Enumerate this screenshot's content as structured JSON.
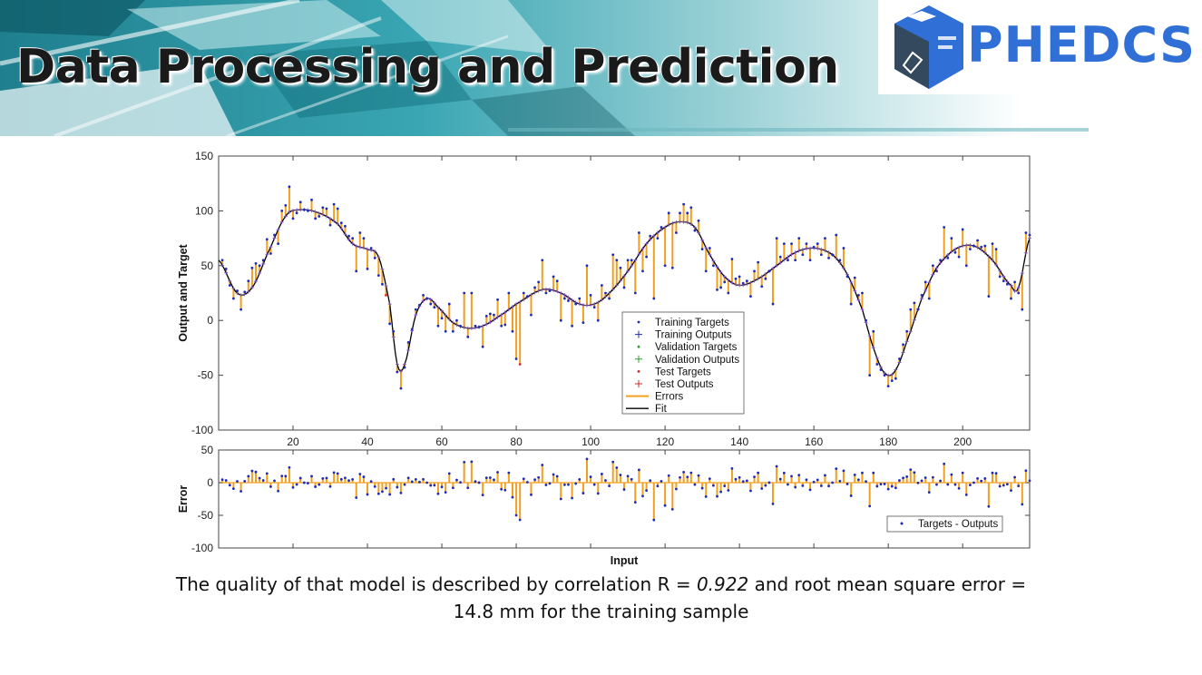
{
  "slide": {
    "title": "Data Processing and Prediction",
    "logo_text": "PHEDCS",
    "caption_line1_prefix": "The quality of that model is described by correlation R = ",
    "caption_r_value": "0.922",
    "caption_line1_suffix": " and root mean square error =",
    "caption_line2": "14.8 mm for the training sample"
  },
  "colors": {
    "accent": "#2f6fd6",
    "banner_teal": "#3aa6b3",
    "errors": "#f0a020",
    "fit": "#000000",
    "training_points": "#1f2ab5",
    "validation_points": "#2ca02c",
    "test_points": "#d62728"
  },
  "chart_data": [
    {
      "type": "line",
      "xlabel": "",
      "ylabel": "Output and Target",
      "xlim": [
        0,
        218
      ],
      "ylim": [
        -100,
        150
      ],
      "xticks": [
        20,
        40,
        60,
        80,
        100,
        120,
        140,
        160,
        180,
        200
      ],
      "yticks": [
        -100,
        -50,
        0,
        50,
        100,
        150
      ],
      "grid": false,
      "legend_position": "center-right",
      "legend": [
        "Training Targets",
        "Training Outputs",
        "Validation Targets",
        "Validation Outputs",
        "Test Targets",
        "Test Outputs",
        "Errors",
        "Fit"
      ],
      "fit_keypoints": [
        [
          0,
          55
        ],
        [
          5,
          25
        ],
        [
          9,
          30
        ],
        [
          13,
          60
        ],
        [
          18,
          95
        ],
        [
          22,
          101
        ],
        [
          27,
          98
        ],
        [
          32,
          88
        ],
        [
          36,
          70
        ],
        [
          40,
          65
        ],
        [
          43,
          58
        ],
        [
          46,
          15
        ],
        [
          48,
          -40
        ],
        [
          50,
          -40
        ],
        [
          53,
          5
        ],
        [
          56,
          20
        ],
        [
          59,
          12
        ],
        [
          63,
          -2
        ],
        [
          67,
          -7
        ],
        [
          71,
          -5
        ],
        [
          75,
          3
        ],
        [
          80,
          15
        ],
        [
          87,
          28
        ],
        [
          92,
          25
        ],
        [
          97,
          15
        ],
        [
          101,
          15
        ],
        [
          105,
          25
        ],
        [
          110,
          45
        ],
        [
          115,
          70
        ],
        [
          120,
          85
        ],
        [
          124,
          90
        ],
        [
          128,
          85
        ],
        [
          132,
          60
        ],
        [
          136,
          40
        ],
        [
          140,
          32
        ],
        [
          145,
          38
        ],
        [
          150,
          50
        ],
        [
          155,
          62
        ],
        [
          160,
          66
        ],
        [
          165,
          60
        ],
        [
          169,
          42
        ],
        [
          173,
          10
        ],
        [
          176,
          -25
        ],
        [
          179,
          -48
        ],
        [
          182,
          -45
        ],
        [
          186,
          -10
        ],
        [
          189,
          20
        ],
        [
          193,
          48
        ],
        [
          198,
          65
        ],
        [
          203,
          68
        ],
        [
          208,
          55
        ],
        [
          213,
          32
        ],
        [
          215,
          30
        ],
        [
          218,
          75
        ]
      ],
      "targets": [
        [
          1,
          55
        ],
        [
          2,
          47
        ],
        [
          3,
          32
        ],
        [
          4,
          20
        ],
        [
          5,
          27
        ],
        [
          6,
          10
        ],
        [
          7,
          26
        ],
        [
          8,
          36
        ],
        [
          9,
          48
        ],
        [
          10,
          52
        ],
        [
          11,
          50
        ],
        [
          12,
          55
        ],
        [
          13,
          74
        ],
        [
          14,
          61
        ],
        [
          15,
          78
        ],
        [
          16,
          70
        ],
        [
          17,
          100
        ],
        [
          18,
          105
        ],
        [
          19,
          122
        ],
        [
          20,
          93
        ],
        [
          21,
          98
        ],
        [
          22,
          108
        ],
        [
          23,
          101
        ],
        [
          24,
          100
        ],
        [
          25,
          110
        ],
        [
          26,
          93
        ],
        [
          27,
          95
        ],
        [
          28,
          103
        ],
        [
          29,
          102
        ],
        [
          30,
          87
        ],
        [
          31,
          106
        ],
        [
          32,
          102
        ],
        [
          33,
          89
        ],
        [
          34,
          86
        ],
        [
          35,
          77
        ],
        [
          36,
          75
        ],
        [
          37,
          45
        ],
        [
          38,
          80
        ],
        [
          39,
          75
        ],
        [
          40,
          47
        ],
        [
          41,
          66
        ],
        [
          42,
          57
        ],
        [
          43,
          41
        ],
        [
          44,
          33
        ],
        [
          45,
          23
        ],
        [
          46,
          -3
        ],
        [
          47,
          -10
        ],
        [
          48,
          -47
        ],
        [
          49,
          -62
        ],
        [
          50,
          -43
        ],
        [
          51,
          -20
        ],
        [
          52,
          -8
        ],
        [
          53,
          10
        ],
        [
          54,
          14
        ],
        [
          55,
          23
        ],
        [
          56,
          20
        ],
        [
          57,
          15
        ],
        [
          58,
          12
        ],
        [
          59,
          -5
        ],
        [
          60,
          2
        ],
        [
          61,
          -10
        ],
        [
          62,
          15
        ],
        [
          63,
          -10
        ],
        [
          64,
          0
        ],
        [
          65,
          -5
        ],
        [
          66,
          25
        ],
        [
          67,
          -15
        ],
        [
          68,
          25
        ],
        [
          69,
          -5
        ],
        [
          70,
          -6
        ],
        [
          71,
          -24
        ],
        [
          72,
          4
        ],
        [
          73,
          6
        ],
        [
          74,
          5
        ],
        [
          75,
          19
        ],
        [
          76,
          -5
        ],
        [
          77,
          -4
        ],
        [
          78,
          25
        ],
        [
          79,
          -10
        ],
        [
          80,
          -35
        ],
        [
          81,
          -40
        ],
        [
          82,
          25
        ],
        [
          83,
          22
        ],
        [
          84,
          5
        ],
        [
          85,
          30
        ],
        [
          86,
          35
        ],
        [
          87,
          55
        ],
        [
          88,
          25
        ],
        [
          89,
          27
        ],
        [
          90,
          40
        ],
        [
          91,
          36
        ],
        [
          92,
          0
        ],
        [
          93,
          20
        ],
        [
          94,
          18
        ],
        [
          95,
          -5
        ],
        [
          96,
          15
        ],
        [
          97,
          20
        ],
        [
          98,
          -2
        ],
        [
          99,
          50
        ],
        [
          100,
          23
        ],
        [
          101,
          12
        ],
        [
          102,
          0
        ],
        [
          103,
          32
        ],
        [
          104,
          25
        ],
        [
          105,
          20
        ],
        [
          106,
          60
        ],
        [
          107,
          55
        ],
        [
          108,
          48
        ],
        [
          109,
          30
        ],
        [
          110,
          55
        ],
        [
          111,
          55
        ],
        [
          112,
          25
        ],
        [
          113,
          80
        ],
        [
          114,
          45
        ],
        [
          115,
          58
        ],
        [
          116,
          77
        ],
        [
          117,
          20
        ],
        [
          118,
          75
        ],
        [
          119,
          85
        ],
        [
          120,
          50
        ],
        [
          121,
          98
        ],
        [
          122,
          48
        ],
        [
          123,
          80
        ],
        [
          124,
          98
        ],
        [
          125,
          106
        ],
        [
          126,
          98
        ],
        [
          127,
          103
        ],
        [
          128,
          82
        ],
        [
          129,
          91
        ],
        [
          130,
          65
        ],
        [
          131,
          45
        ],
        [
          132,
          66
        ],
        [
          133,
          50
        ],
        [
          134,
          28
        ],
        [
          135,
          30
        ],
        [
          136,
          35
        ],
        [
          137,
          25
        ],
        [
          138,
          56
        ],
        [
          139,
          38
        ],
        [
          140,
          40
        ],
        [
          141,
          34
        ],
        [
          142,
          36
        ],
        [
          143,
          22
        ],
        [
          144,
          45
        ],
        [
          145,
          53
        ],
        [
          146,
          31
        ],
        [
          147,
          38
        ],
        [
          148,
          45
        ],
        [
          149,
          15
        ],
        [
          150,
          75
        ],
        [
          151,
          58
        ],
        [
          152,
          70
        ],
        [
          153,
          55
        ],
        [
          154,
          70
        ],
        [
          155,
          55
        ],
        [
          156,
          75
        ],
        [
          157,
          60
        ],
        [
          158,
          70
        ],
        [
          159,
          55
        ],
        [
          160,
          67
        ],
        [
          161,
          70
        ],
        [
          162,
          60
        ],
        [
          163,
          75
        ],
        [
          164,
          57
        ],
        [
          165,
          60
        ],
        [
          166,
          78
        ],
        [
          167,
          55
        ],
        [
          168,
          66
        ],
        [
          169,
          40
        ],
        [
          170,
          15
        ],
        [
          171,
          39
        ],
        [
          172,
          23
        ],
        [
          173,
          25
        ],
        [
          174,
          0
        ],
        [
          175,
          -50
        ],
        [
          176,
          -10
        ],
        [
          177,
          -40
        ],
        [
          178,
          -45
        ],
        [
          179,
          -50
        ],
        [
          180,
          -60
        ],
        [
          181,
          -55
        ],
        [
          182,
          -53
        ],
        [
          183,
          -35
        ],
        [
          184,
          -22
        ],
        [
          185,
          -10
        ],
        [
          186,
          10
        ],
        [
          187,
          16
        ],
        [
          188,
          10
        ],
        [
          189,
          23
        ],
        [
          190,
          35
        ],
        [
          191,
          20
        ],
        [
          192,
          50
        ],
        [
          193,
          45
        ],
        [
          194,
          55
        ],
        [
          195,
          85
        ],
        [
          196,
          57
        ],
        [
          197,
          75
        ],
        [
          198,
          62
        ],
        [
          199,
          58
        ],
        [
          200,
          83
        ],
        [
          201,
          50
        ],
        [
          202,
          65
        ],
        [
          203,
          68
        ],
        [
          204,
          73
        ],
        [
          205,
          67
        ],
        [
          206,
          68
        ],
        [
          207,
          22
        ],
        [
          208,
          70
        ],
        [
          209,
          65
        ],
        [
          210,
          40
        ],
        [
          211,
          36
        ],
        [
          212,
          33
        ],
        [
          213,
          20
        ],
        [
          214,
          35
        ],
        [
          215,
          25
        ],
        [
          216,
          10
        ],
        [
          217,
          80
        ],
        [
          218,
          78
        ]
      ],
      "series": [
        {
          "name": "Training Targets"
        },
        {
          "name": "Fit"
        },
        {
          "name": "Errors"
        }
      ]
    },
    {
      "type": "bar",
      "xlabel": "Input",
      "ylabel": "Error",
      "xlim": [
        0,
        218
      ],
      "ylim": [
        -100,
        50
      ],
      "yticks": [
        -100,
        -50,
        0,
        50
      ],
      "grid": false,
      "legend_position": "bottom-right",
      "legend": [
        "Targets - Outputs"
      ]
    }
  ]
}
